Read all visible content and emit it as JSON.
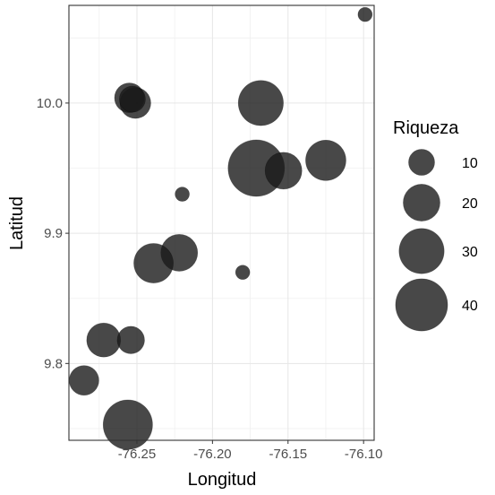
{
  "chart_data": {
    "type": "scatter",
    "title": "",
    "xlabel": "Longitud",
    "ylabel": "Latitud",
    "xlim": [
      -76.295,
      -76.093
    ],
    "ylim": [
      9.741,
      10.075
    ],
    "grid": true,
    "x_ticks": [
      {
        "value": -76.25,
        "label": "-76.25"
      },
      {
        "value": -76.2,
        "label": "-76.20"
      },
      {
        "value": -76.15,
        "label": "-76.15"
      },
      {
        "value": -76.1,
        "label": "-76.10"
      }
    ],
    "y_ticks": [
      {
        "value": 9.8,
        "label": "9.8"
      },
      {
        "value": 9.9,
        "label": "9.9"
      },
      {
        "value": 10.0,
        "label": "10.0"
      }
    ],
    "point_color": "#1a1a1a",
    "point_opacity": 0.8,
    "points": [
      {
        "x": -76.099,
        "y": 10.068,
        "size": 3
      },
      {
        "x": -76.255,
        "y": 10.004,
        "size": 13
      },
      {
        "x": -76.251,
        "y": 10.0,
        "size": 14
      },
      {
        "x": -76.253,
        "y": 10.003,
        "size": 10
      },
      {
        "x": -76.168,
        "y": 10.0,
        "size": 30
      },
      {
        "x": -76.171,
        "y": 9.95,
        "size": 47
      },
      {
        "x": -76.153,
        "y": 9.948,
        "size": 20
      },
      {
        "x": -76.125,
        "y": 9.956,
        "size": 24
      },
      {
        "x": -76.22,
        "y": 9.93,
        "size": 3
      },
      {
        "x": -76.222,
        "y": 9.885,
        "size": 20
      },
      {
        "x": -76.239,
        "y": 9.877,
        "size": 23
      },
      {
        "x": -76.18,
        "y": 9.87,
        "size": 3
      },
      {
        "x": -76.272,
        "y": 9.818,
        "size": 17
      },
      {
        "x": -76.254,
        "y": 9.818,
        "size": 11
      },
      {
        "x": -76.285,
        "y": 9.787,
        "size": 13
      },
      {
        "x": -76.256,
        "y": 9.753,
        "size": 36
      }
    ],
    "legend": {
      "title": "Riqueza",
      "position": "right",
      "items": [
        {
          "size": 10,
          "label": "10"
        },
        {
          "size": 20,
          "label": "20"
        },
        {
          "size": 30,
          "label": "30"
        },
        {
          "size": 40,
          "label": "40"
        }
      ]
    }
  }
}
